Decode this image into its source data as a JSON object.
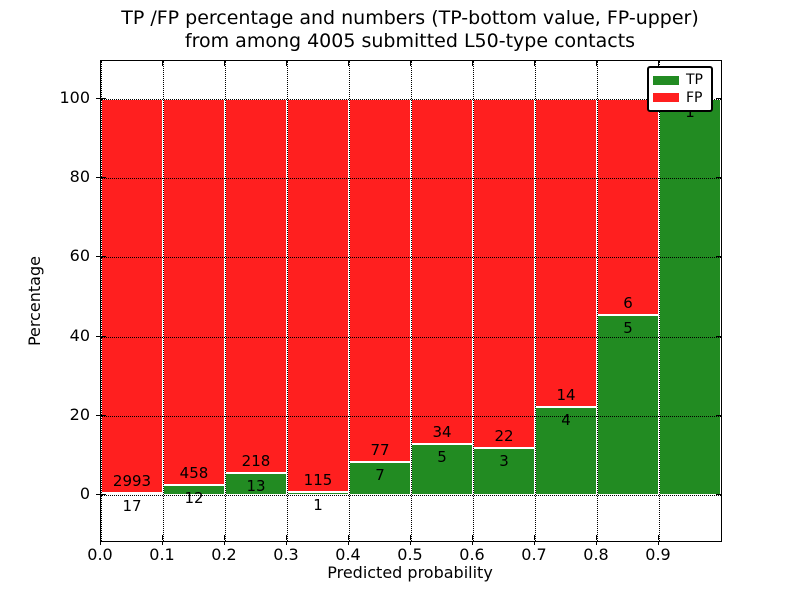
{
  "figure": {
    "title_line1": "TP /FP percentage and numbers (TP-bottom value, FP-upper)",
    "title_line2": "from among 4005 submitted L50-type contacts"
  },
  "chart_data": {
    "type": "bar",
    "stacked": true,
    "normalized_to_percent": true,
    "title": "TP /FP percentage and numbers (TP-bottom value, FP-upper) from among 4005 submitted L50-type contacts",
    "xlabel": "Predicted probability",
    "ylabel": "Percentage",
    "total_contacts": 4005,
    "x_bin_starts": [
      0.0,
      0.1,
      0.2,
      0.3,
      0.4,
      0.5,
      0.6,
      0.7,
      0.8,
      0.9
    ],
    "bin_width": 0.1,
    "x_tick_labels": [
      "0.0",
      "0.1",
      "0.2",
      "0.3",
      "0.4",
      "0.5",
      "0.6",
      "0.7",
      "0.8",
      "0.9"
    ],
    "y_ticks": [
      0,
      20,
      40,
      60,
      80,
      100
    ],
    "y_tick_labels": [
      "0",
      "20",
      "40",
      "60",
      "80",
      "100"
    ],
    "xlim": [
      0.0,
      1.0
    ],
    "ylim": [
      -11.6,
      109.6
    ],
    "grid": "dotted",
    "legend_position": "upper right",
    "series": [
      {
        "name": "TP",
        "color": "#228B22",
        "counts": [
          17,
          12,
          13,
          1,
          7,
          5,
          3,
          4,
          5,
          1
        ]
      },
      {
        "name": "FP",
        "color": "#FF1F1F",
        "counts": [
          2993,
          458,
          218,
          115,
          77,
          34,
          22,
          14,
          6,
          0
        ]
      }
    ],
    "tp_percent_per_bin": [
      0.56,
      2.55,
      5.63,
      0.86,
      8.33,
      12.82,
      12.0,
      22.22,
      45.45,
      100.0
    ]
  },
  "colors": {
    "tp": "#228B22",
    "fp": "#FF1F1F",
    "grid": "#000000",
    "background": "#FFFFFF",
    "text": "#000000"
  }
}
